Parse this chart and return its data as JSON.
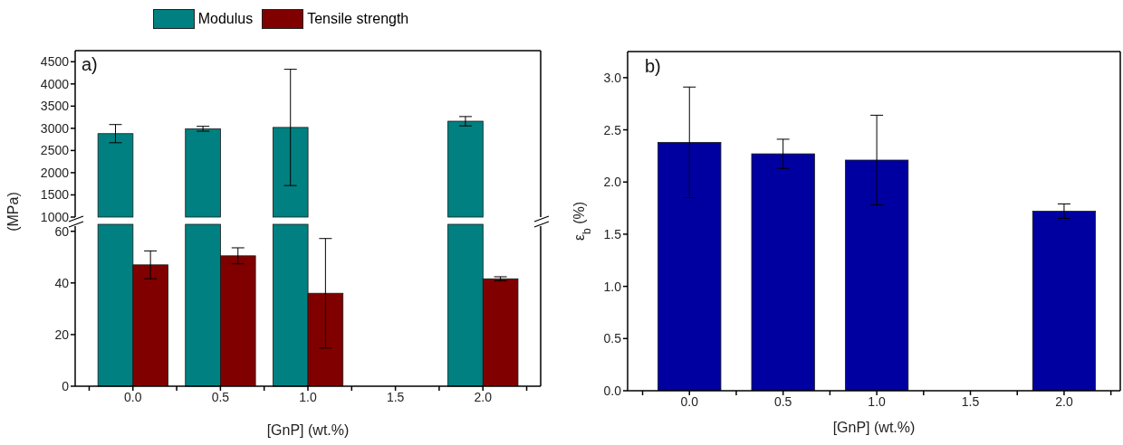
{
  "chart_data": [
    {
      "type": "bar",
      "series": [
        {
          "name": "Modulus",
          "color": "#008080",
          "x": [
            -0.1,
            0.4,
            0.9,
            1.9
          ],
          "values": [
            2880,
            2990,
            3020,
            3160
          ],
          "errors": [
            205,
            55,
            1310,
            105
          ]
        }
      ],
      "xlim": [
        -0.33,
        2.33
      ],
      "ylim": [
        1000,
        4750
      ],
      "yticks": [
        1000,
        1500,
        2000,
        2500,
        3000,
        3500,
        4000,
        4500
      ],
      "ylabel": "(MPa)",
      "annotations": [
        "a)"
      ],
      "legend": "top",
      "tick_labels": "y"
    },
    {
      "type": "bar",
      "series": [
        {
          "name": "Tensile strength",
          "color": "#800000",
          "x": [
            0.1,
            0.6,
            1.1,
            2.1
          ],
          "values": [
            47,
            50.5,
            36,
            41.6
          ],
          "errors": [
            5.4,
            3.1,
            21.2,
            0.8
          ]
        }
      ],
      "xlim": [
        -0.33,
        2.33
      ],
      "xticks": [
        {
          "value": -0.25,
          "label": null
        },
        {
          "value": 0,
          "label": "0.0"
        },
        {
          "value": 0.25,
          "label": null
        },
        {
          "value": 0.5,
          "label": "0.5"
        },
        {
          "value": 0.75,
          "label": null
        },
        {
          "value": 1,
          "label": "1.0"
        },
        {
          "value": 1.25,
          "label": null
        },
        {
          "value": 1.5,
          "label": "1.5"
        },
        {
          "value": 1.75,
          "label": null
        },
        {
          "value": 2,
          "label": "2.0"
        },
        {
          "value": 2.25,
          "label": null
        }
      ],
      "ylim": [
        0,
        62
      ],
      "yticks": [
        0,
        20,
        40,
        60
      ],
      "xlabel": "[GnP] (wt.%)",
      "legend": "top"
    },
    {
      "type": "bar",
      "series": [
        {
          "color": "#0000a0",
          "x": [
            0,
            0.5,
            1,
            2
          ],
          "values": [
            2.38,
            2.27,
            2.21,
            1.72
          ],
          "errors": [
            0.53,
            0.14,
            0.43,
            0.07
          ]
        }
      ],
      "xlim": [
        -0.33,
        2.3
      ],
      "xticks": [
        {
          "value": -0.25,
          "label": null
        },
        {
          "value": 0,
          "label": "0.0"
        },
        {
          "value": 0.25,
          "label": null
        },
        {
          "value": 0.5,
          "label": "0.5"
        },
        {
          "value": 0.75,
          "label": null
        },
        {
          "value": 1,
          "label": "1.0"
        },
        {
          "value": 1.25,
          "label": null
        },
        {
          "value": 1.5,
          "label": "1.5"
        },
        {
          "value": 1.75,
          "label": null
        },
        {
          "value": 2,
          "label": "2.0"
        },
        {
          "value": 2.25,
          "label": null
        }
      ],
      "ylim": [
        0,
        3.25
      ],
      "yticks": [
        {
          "value": 0,
          "label": "0.0"
        },
        0.5,
        {
          "value": 1,
          "label": "1.0"
        },
        1.5,
        {
          "value": 2,
          "label": "2.0"
        },
        2.5,
        {
          "value": 3,
          "label": "3.0"
        }
      ],
      "xlabel": "[GnP] (wt.%)",
      "ylabel": "ε$_{b}$ (%)",
      "annotations": [
        "b)"
      ]
    }
  ]
}
